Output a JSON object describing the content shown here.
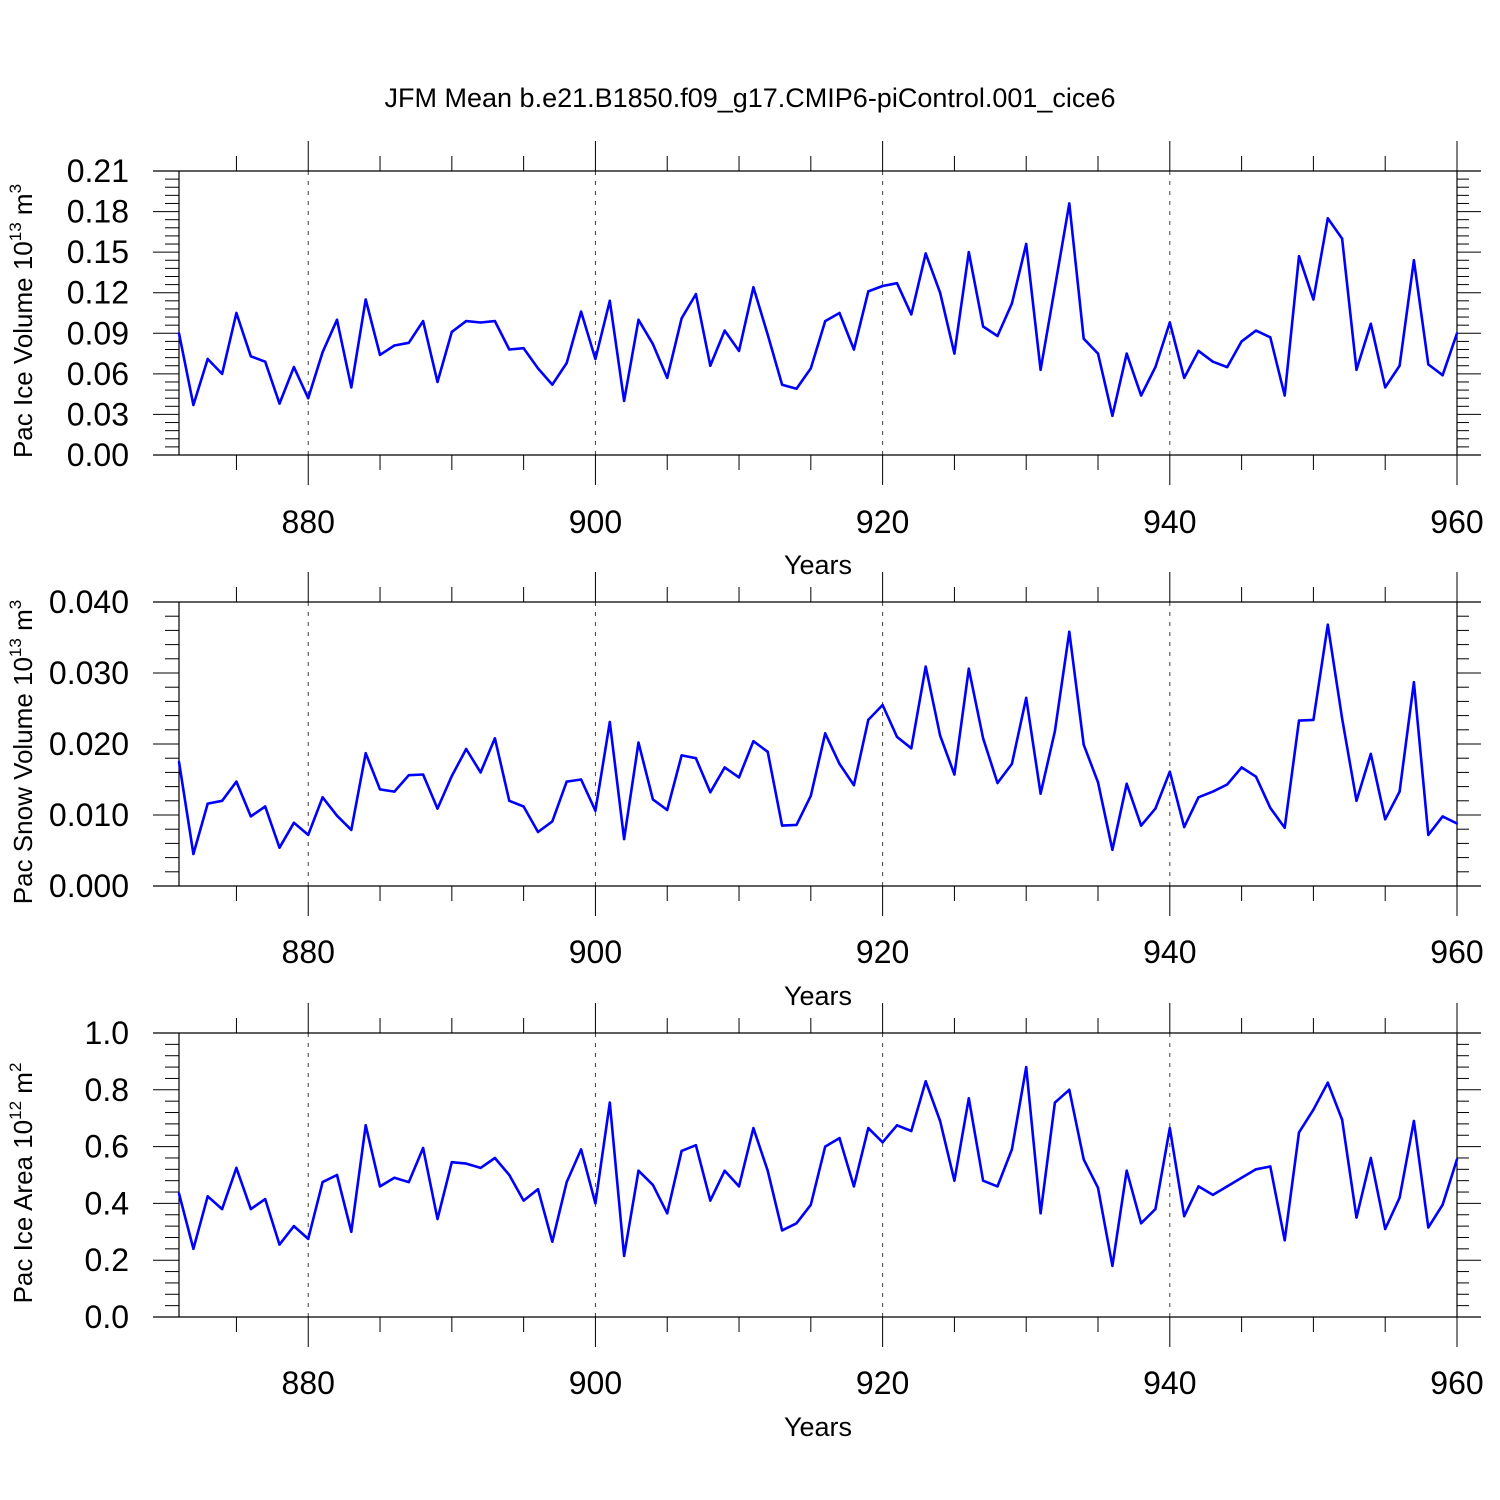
{
  "title": "JFM Mean b.e21.B1850.f09_g17.CMIP6-piControl.001_cice6",
  "line_color": "#0000ff",
  "chart_data": [
    {
      "type": "line",
      "name": "pac-ice-volume",
      "ylabel_main": "Pac Ice Volume 10",
      "ylabel_sup": "13",
      "ylabel_unit": " m",
      "ylabel_unit_sup": "3",
      "xlabel": "Years",
      "xlim": [
        871,
        960
      ],
      "ylim": [
        0,
        0.21
      ],
      "xticks": [
        880,
        900,
        920,
        940,
        960
      ],
      "yticks": [
        "0.00",
        "0.03",
        "0.06",
        "0.09",
        "0.12",
        "0.15",
        "0.18",
        "0.21"
      ],
      "grid_x": [
        880,
        900,
        920,
        940
      ],
      "x_start": 871,
      "values": [
        0.09,
        0.037,
        0.071,
        0.06,
        0.105,
        0.073,
        0.069,
        0.038,
        0.065,
        0.042,
        0.076,
        0.1,
        0.05,
        0.115,
        0.074,
        0.081,
        0.083,
        0.099,
        0.054,
        0.091,
        0.099,
        0.098,
        0.099,
        0.078,
        0.079,
        0.064,
        0.052,
        0.068,
        0.106,
        0.071,
        0.114,
        0.04,
        0.1,
        0.082,
        0.057,
        0.101,
        0.119,
        0.066,
        0.092,
        0.077,
        0.124,
        0.089,
        0.052,
        0.049,
        0.064,
        0.099,
        0.105,
        0.078,
        0.121,
        0.125,
        0.127,
        0.104,
        0.149,
        0.12,
        0.075,
        0.15,
        0.095,
        0.088,
        0.112,
        0.156,
        0.063,
        0.124,
        0.186,
        0.086,
        0.075,
        0.029,
        0.075,
        0.044,
        0.065,
        0.098,
        0.057,
        0.077,
        0.069,
        0.065,
        0.084,
        0.092,
        0.087,
        0.044,
        0.147,
        0.115,
        0.175,
        0.16,
        0.063,
        0.097,
        0.05,
        0.066,
        0.144,
        0.067,
        0.059,
        0.09
      ]
    },
    {
      "type": "line",
      "name": "pac-snow-volume",
      "ylabel_main": "Pac Snow Volume 10",
      "ylabel_sup": "13",
      "ylabel_unit": " m",
      "ylabel_unit_sup": "3",
      "xlabel": "Years",
      "xlim": [
        871,
        960
      ],
      "ylim": [
        0,
        0.04
      ],
      "xticks": [
        880,
        900,
        920,
        940,
        960
      ],
      "yticks": [
        "0.000",
        "0.010",
        "0.020",
        "0.030",
        "0.040"
      ],
      "grid_x": [
        880,
        900,
        920,
        940
      ],
      "x_start": 871,
      "values": [
        0.0175,
        0.0045,
        0.0116,
        0.012,
        0.0147,
        0.0098,
        0.0112,
        0.0054,
        0.0089,
        0.0072,
        0.0125,
        0.0099,
        0.0079,
        0.0187,
        0.0136,
        0.0133,
        0.0156,
        0.0157,
        0.0109,
        0.0155,
        0.0193,
        0.016,
        0.0208,
        0.012,
        0.0112,
        0.0076,
        0.0091,
        0.0147,
        0.015,
        0.0106,
        0.0231,
        0.0066,
        0.0202,
        0.0122,
        0.0107,
        0.0184,
        0.018,
        0.0132,
        0.0167,
        0.0153,
        0.0204,
        0.0189,
        0.0085,
        0.0086,
        0.0127,
        0.0215,
        0.0172,
        0.0142,
        0.0234,
        0.0255,
        0.021,
        0.0194,
        0.0309,
        0.0212,
        0.0157,
        0.0306,
        0.0208,
        0.0145,
        0.0172,
        0.0265,
        0.013,
        0.0218,
        0.0358,
        0.0199,
        0.0146,
        0.0051,
        0.0144,
        0.0085,
        0.0109,
        0.0161,
        0.0083,
        0.0125,
        0.0133,
        0.0143,
        0.0167,
        0.0154,
        0.011,
        0.0082,
        0.0233,
        0.0234,
        0.0368,
        0.0236,
        0.012,
        0.0186,
        0.0094,
        0.0133,
        0.0287,
        0.0072,
        0.0098,
        0.0088
      ]
    },
    {
      "type": "line",
      "name": "pac-ice-area",
      "ylabel_main": "Pac Ice Area 10",
      "ylabel_sup": "12",
      "ylabel_unit": " m",
      "ylabel_unit_sup": "2",
      "xlabel": "Years",
      "xlim": [
        871,
        960
      ],
      "ylim": [
        0,
        1.0
      ],
      "xticks": [
        880,
        900,
        920,
        940,
        960
      ],
      "yticks": [
        "0.0",
        "0.2",
        "0.4",
        "0.6",
        "0.8",
        "1.0"
      ],
      "grid_x": [
        880,
        900,
        920,
        940
      ],
      "x_start": 871,
      "values": [
        0.435,
        0.24,
        0.425,
        0.38,
        0.525,
        0.38,
        0.415,
        0.255,
        0.32,
        0.275,
        0.475,
        0.5,
        0.3,
        0.675,
        0.46,
        0.49,
        0.475,
        0.595,
        0.345,
        0.545,
        0.54,
        0.525,
        0.56,
        0.5,
        0.41,
        0.45,
        0.265,
        0.475,
        0.59,
        0.4,
        0.755,
        0.215,
        0.515,
        0.465,
        0.365,
        0.585,
        0.605,
        0.41,
        0.515,
        0.46,
        0.665,
        0.515,
        0.305,
        0.33,
        0.395,
        0.6,
        0.63,
        0.46,
        0.665,
        0.615,
        0.675,
        0.655,
        0.83,
        0.69,
        0.48,
        0.77,
        0.48,
        0.46,
        0.59,
        0.88,
        0.365,
        0.755,
        0.8,
        0.555,
        0.455,
        0.18,
        0.515,
        0.33,
        0.38,
        0.665,
        0.355,
        0.46,
        0.43,
        0.46,
        0.49,
        0.52,
        0.53,
        0.27,
        0.65,
        0.73,
        0.825,
        0.695,
        0.35,
        0.56,
        0.31,
        0.42,
        0.69,
        0.315,
        0.395,
        0.555
      ]
    }
  ]
}
